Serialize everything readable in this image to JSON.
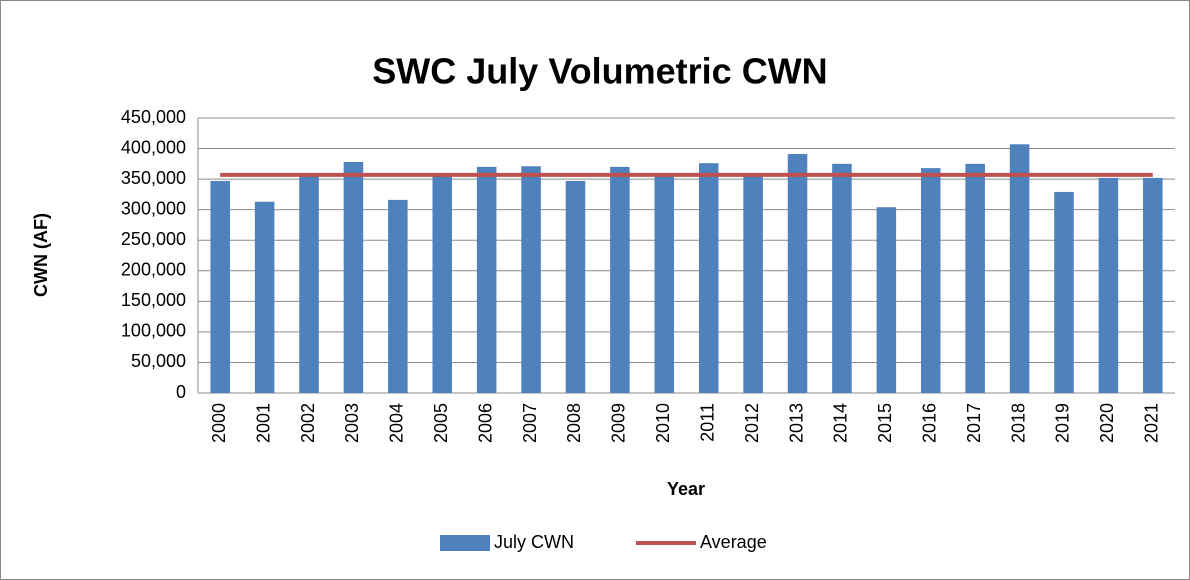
{
  "chart_data": {
    "type": "bar",
    "title": "SWC July Volumetric CWN",
    "x_label": "Year",
    "y_label": "CWN (AF)",
    "categories": [
      "2000",
      "2001",
      "2002",
      "2003",
      "2004",
      "2005",
      "2006",
      "2007",
      "2008",
      "2009",
      "2010",
      "2011",
      "2012",
      "2013",
      "2014",
      "2015",
      "2016",
      "2017",
      "2018",
      "2019",
      "2020",
      "2021"
    ],
    "series": [
      {
        "name": "July CWN",
        "type": "bar",
        "color": "#4f81bd",
        "values": [
          347000,
          313000,
          360000,
          378000,
          316000,
          358000,
          370000,
          371000,
          347000,
          370000,
          360000,
          376000,
          358000,
          391000,
          375000,
          304000,
          368000,
          375000,
          407000,
          329000,
          352000,
          352000
        ]
      },
      {
        "name": "Average",
        "type": "line",
        "color": "#c0504d",
        "values": [
          357000,
          357000,
          357000,
          357000,
          357000,
          357000,
          357000,
          357000,
          357000,
          357000,
          357000,
          357000,
          357000,
          357000,
          357000,
          357000,
          357000,
          357000,
          357000,
          357000,
          357000,
          357000
        ]
      }
    ],
    "ylim": [
      0,
      450000
    ],
    "yticks": [
      0,
      {
        "value": 50000,
        "label": "50,000"
      },
      {
        "value": 100000,
        "label": "100,000"
      },
      {
        "value": 150000,
        "label": "150,000"
      },
      {
        "value": 200000,
        "label": "200,000"
      },
      {
        "value": 250000,
        "label": "250,000"
      },
      {
        "value": 300000,
        "label": "300,000"
      },
      {
        "value": 350000,
        "label": "350,000"
      },
      {
        "value": 400000,
        "label": "400,000"
      },
      {
        "value": 450000,
        "label": "450,000"
      }
    ],
    "grid": true,
    "legend": "bottom"
  }
}
